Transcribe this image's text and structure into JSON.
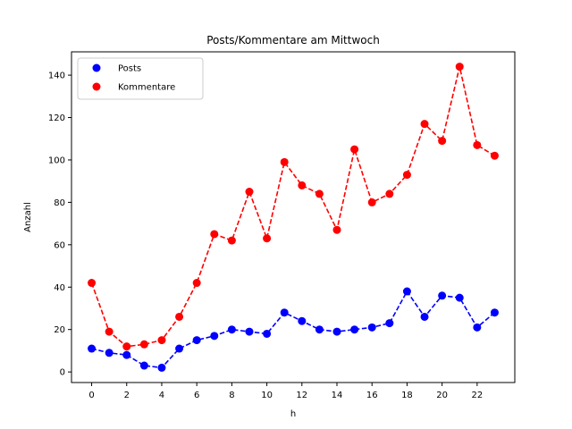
{
  "chart_data": {
    "type": "line",
    "title": "Posts/Kommentare am Mittwoch",
    "xlabel": "h",
    "ylabel": "Anzahl",
    "xlim": [
      -1.15,
      24.15
    ],
    "ylim": [
      -5,
      151
    ],
    "xticks": [
      0,
      2,
      4,
      6,
      8,
      10,
      12,
      14,
      16,
      18,
      20,
      22
    ],
    "yticks": [
      0,
      20,
      40,
      60,
      80,
      100,
      120,
      140
    ],
    "grid": false,
    "legend_position": "upper-left",
    "x": [
      0,
      1,
      2,
      3,
      4,
      5,
      6,
      7,
      8,
      9,
      10,
      11,
      12,
      13,
      14,
      15,
      16,
      17,
      18,
      19,
      20,
      21,
      22,
      23
    ],
    "series": [
      {
        "name": "Posts",
        "color": "#0000ff",
        "values": [
          11,
          9,
          8,
          3,
          2,
          11,
          15,
          17,
          20,
          19,
          18,
          28,
          24,
          20,
          19,
          20,
          21,
          23,
          38,
          26,
          36,
          35,
          21,
          28
        ]
      },
      {
        "name": "Kommentare",
        "color": "#ff0000",
        "values": [
          42,
          19,
          12,
          13,
          15,
          26,
          42,
          65,
          62,
          85,
          63,
          99,
          88,
          84,
          67,
          105,
          80,
          84,
          93,
          117,
          109,
          144,
          107,
          102
        ]
      }
    ]
  }
}
